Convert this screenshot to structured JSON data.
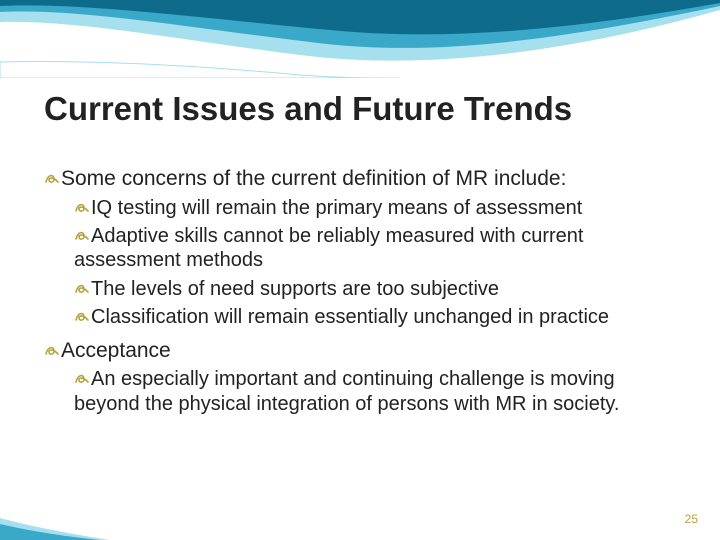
{
  "slide": {
    "title": "Current Issues and Future Trends",
    "page_number": "25",
    "bullet_color": "#b5a33a",
    "text_color": "#222222",
    "title_fontsize": 33,
    "body_fontsize": 21,
    "sub_fontsize": 20,
    "background_color": "#ffffff",
    "wave_colors": {
      "dark": "#0f6b8c",
      "mid": "#3aa8c9",
      "light": "#a6e0ee"
    },
    "items": [
      {
        "level": 1,
        "text": "Some concerns of the current definition of MR include:"
      },
      {
        "level": 2,
        "text": "IQ testing will remain the primary means of assessment"
      },
      {
        "level": 2,
        "text": "Adaptive skills cannot be reliably measured with current assessment methods"
      },
      {
        "level": 2,
        "text": "The levels of need supports are too subjective"
      },
      {
        "level": 2,
        "text": "Classification will remain essentially unchanged in practice"
      },
      {
        "level": 1,
        "text": "Acceptance"
      },
      {
        "level": 2,
        "text": "An especially important and continuing challenge is moving beyond the physical integration of persons with MR in society."
      }
    ]
  }
}
